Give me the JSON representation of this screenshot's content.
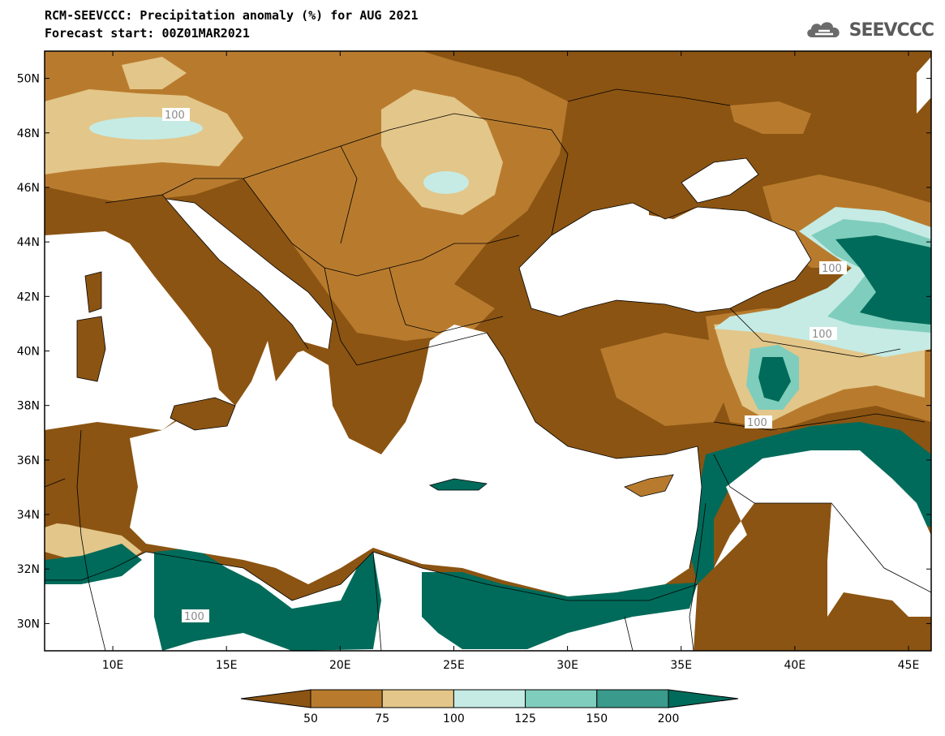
{
  "header": {
    "title": "RCM-SEEVCCC: Precipitation anomaly (%) for AUG 2021",
    "subtitle": "Forecast start: 00Z01MAR2021"
  },
  "logo": {
    "text": "SEEVCCC",
    "icon": "cloud-logo-icon"
  },
  "map": {
    "lon_range": [
      7,
      46
    ],
    "lat_range": [
      29,
      51
    ],
    "x_ticks": [
      "10E",
      "15E",
      "20E",
      "25E",
      "30E",
      "35E",
      "40E",
      "45E"
    ],
    "x_tick_values": [
      10,
      15,
      20,
      25,
      30,
      35,
      40,
      45
    ],
    "y_ticks": [
      "50N",
      "48N",
      "46N",
      "44N",
      "42N",
      "40N",
      "38N",
      "36N",
      "34N",
      "32N",
      "30N"
    ],
    "y_tick_values": [
      50,
      48,
      46,
      44,
      42,
      40,
      38,
      36,
      34,
      32,
      30
    ],
    "contour_labels": [
      "100",
      "100",
      "100",
      "100",
      "100"
    ]
  },
  "legend": {
    "bins": [
      {
        "label_upper": "50",
        "color": "#8b5412"
      },
      {
        "label_upper": "75",
        "color": "#b87b2e"
      },
      {
        "label_upper": "100",
        "color": "#e3c689"
      },
      {
        "label_upper": "125",
        "color": "#c5ebe4"
      },
      {
        "label_upper": "150",
        "color": "#7fcdbd"
      },
      {
        "label_upper": "200",
        "color": "#3a9a8b"
      },
      {
        "label_upper": "",
        "color": "#006b5a"
      }
    ],
    "tick_labels": [
      "50",
      "75",
      "100",
      "125",
      "150",
      "200"
    ]
  },
  "colors": {
    "dry_strong": "#8b5412",
    "dry": "#b87b2e",
    "dry_weak": "#e3c689",
    "wet_weak": "#c5ebe4",
    "wet": "#7fcdbd",
    "wet_mid": "#3a9a8b",
    "wet_strong": "#006b5a",
    "sea": "#ffffff"
  }
}
